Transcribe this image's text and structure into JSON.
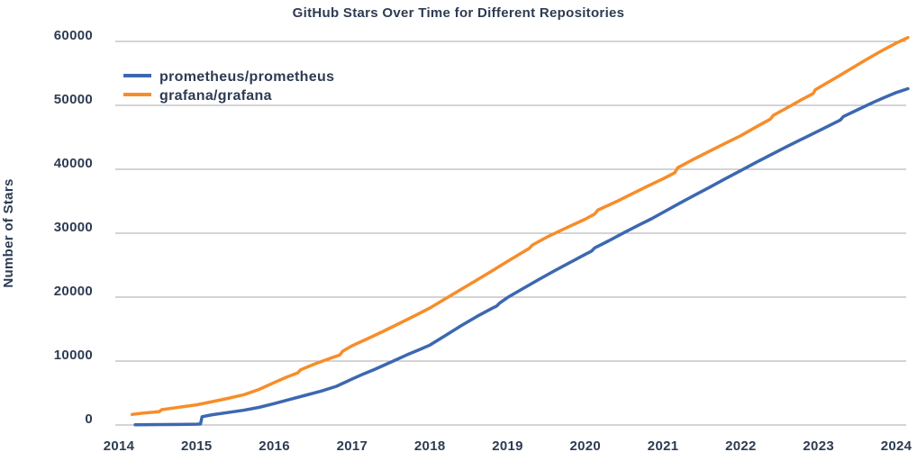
{
  "page": {
    "background": "#ffffff",
    "text_color": "#2e3b53",
    "grid_color": "#a9a9a9"
  },
  "chart_data": {
    "type": "line",
    "title": "GitHub Stars Over Time for Different Repositories",
    "xlabel": "",
    "ylabel": "Number of Stars",
    "x_ticks": [
      2014,
      2015,
      2016,
      2017,
      2018,
      2019,
      2020,
      2021,
      2022,
      2023,
      2024
    ],
    "y_ticks": [
      0,
      10000,
      20000,
      30000,
      40000,
      50000,
      60000
    ],
    "xlim": [
      2013.95,
      2024.25
    ],
    "ylim": [
      0,
      60000
    ],
    "grid": "horizontal gridlines only, light grey, no axis spines",
    "legend_position": "inside top-left, no border",
    "series": [
      {
        "name": "prometheus/prometheus",
        "color": "#3c68b0",
        "points": [
          [
            2014.21,
            30
          ],
          [
            2014.4,
            50
          ],
          [
            2014.6,
            70
          ],
          [
            2014.8,
            90
          ],
          [
            2015.0,
            120
          ],
          [
            2015.05,
            150
          ],
          [
            2015.07,
            1300
          ],
          [
            2015.2,
            1600
          ],
          [
            2015.4,
            1950
          ],
          [
            2015.6,
            2300
          ],
          [
            2015.8,
            2750
          ],
          [
            2016.0,
            3350
          ],
          [
            2016.2,
            4000
          ],
          [
            2016.4,
            4650
          ],
          [
            2016.6,
            5300
          ],
          [
            2016.8,
            6050
          ],
          [
            2017.0,
            7200
          ],
          [
            2017.15,
            8000
          ],
          [
            2017.3,
            8750
          ],
          [
            2017.5,
            9850
          ],
          [
            2017.7,
            10950
          ],
          [
            2017.85,
            11700
          ],
          [
            2018.0,
            12500
          ],
          [
            2018.2,
            14000
          ],
          [
            2018.4,
            15500
          ],
          [
            2018.6,
            16950
          ],
          [
            2018.8,
            18250
          ],
          [
            2018.86,
            18600
          ],
          [
            2018.9,
            19100
          ],
          [
            2019.0,
            19950
          ],
          [
            2019.2,
            21350
          ],
          [
            2019.4,
            22750
          ],
          [
            2019.6,
            24100
          ],
          [
            2019.8,
            25400
          ],
          [
            2020.0,
            26700
          ],
          [
            2020.08,
            27200
          ],
          [
            2020.12,
            27700
          ],
          [
            2020.3,
            28800
          ],
          [
            2020.5,
            30100
          ],
          [
            2020.7,
            31350
          ],
          [
            2020.85,
            32250
          ],
          [
            2021.0,
            33250
          ],
          [
            2021.2,
            34600
          ],
          [
            2021.4,
            35900
          ],
          [
            2021.6,
            37200
          ],
          [
            2021.8,
            38500
          ],
          [
            2022.0,
            39800
          ],
          [
            2022.2,
            41100
          ],
          [
            2022.4,
            42350
          ],
          [
            2022.6,
            43600
          ],
          [
            2022.8,
            44800
          ],
          [
            2023.0,
            46000
          ],
          [
            2023.28,
            47700
          ],
          [
            2023.32,
            48250
          ],
          [
            2023.5,
            49300
          ],
          [
            2023.7,
            50450
          ],
          [
            2023.85,
            51250
          ],
          [
            2024.0,
            52000
          ],
          [
            2024.15,
            52600
          ]
        ]
      },
      {
        "name": "grafana/grafana",
        "color": "#f78d29",
        "points": [
          [
            2014.17,
            1650
          ],
          [
            2014.3,
            1850
          ],
          [
            2014.45,
            2000
          ],
          [
            2014.52,
            2100
          ],
          [
            2014.55,
            2400
          ],
          [
            2014.7,
            2650
          ],
          [
            2014.85,
            2900
          ],
          [
            2015.0,
            3150
          ],
          [
            2015.2,
            3650
          ],
          [
            2015.4,
            4150
          ],
          [
            2015.6,
            4700
          ],
          [
            2015.8,
            5550
          ],
          [
            2016.0,
            6650
          ],
          [
            2016.15,
            7450
          ],
          [
            2016.3,
            8150
          ],
          [
            2016.34,
            8650
          ],
          [
            2016.5,
            9450
          ],
          [
            2016.7,
            10350
          ],
          [
            2016.84,
            10950
          ],
          [
            2016.88,
            11550
          ],
          [
            2017.0,
            12400
          ],
          [
            2017.2,
            13500
          ],
          [
            2017.4,
            14650
          ],
          [
            2017.6,
            15850
          ],
          [
            2017.8,
            17050
          ],
          [
            2018.0,
            18300
          ],
          [
            2018.2,
            19750
          ],
          [
            2018.4,
            21200
          ],
          [
            2018.6,
            22650
          ],
          [
            2018.8,
            24100
          ],
          [
            2019.0,
            25600
          ],
          [
            2019.2,
            27050
          ],
          [
            2019.28,
            27650
          ],
          [
            2019.32,
            28150
          ],
          [
            2019.5,
            29350
          ],
          [
            2019.75,
            30800
          ],
          [
            2020.0,
            32200
          ],
          [
            2020.12,
            33000
          ],
          [
            2020.16,
            33600
          ],
          [
            2020.4,
            34950
          ],
          [
            2020.6,
            36150
          ],
          [
            2020.8,
            37350
          ],
          [
            2021.0,
            38500
          ],
          [
            2021.15,
            39450
          ],
          [
            2021.19,
            40250
          ],
          [
            2021.4,
            41600
          ],
          [
            2021.6,
            42850
          ],
          [
            2021.8,
            44050
          ],
          [
            2022.0,
            45250
          ],
          [
            2022.2,
            46650
          ],
          [
            2022.38,
            47850
          ],
          [
            2022.42,
            48450
          ],
          [
            2022.6,
            49650
          ],
          [
            2022.8,
            51000
          ],
          [
            2022.93,
            51850
          ],
          [
            2022.96,
            52450
          ],
          [
            2023.2,
            54150
          ],
          [
            2023.4,
            55600
          ],
          [
            2023.6,
            57050
          ],
          [
            2023.8,
            58450
          ],
          [
            2024.0,
            59750
          ],
          [
            2024.15,
            60600
          ]
        ]
      }
    ]
  }
}
